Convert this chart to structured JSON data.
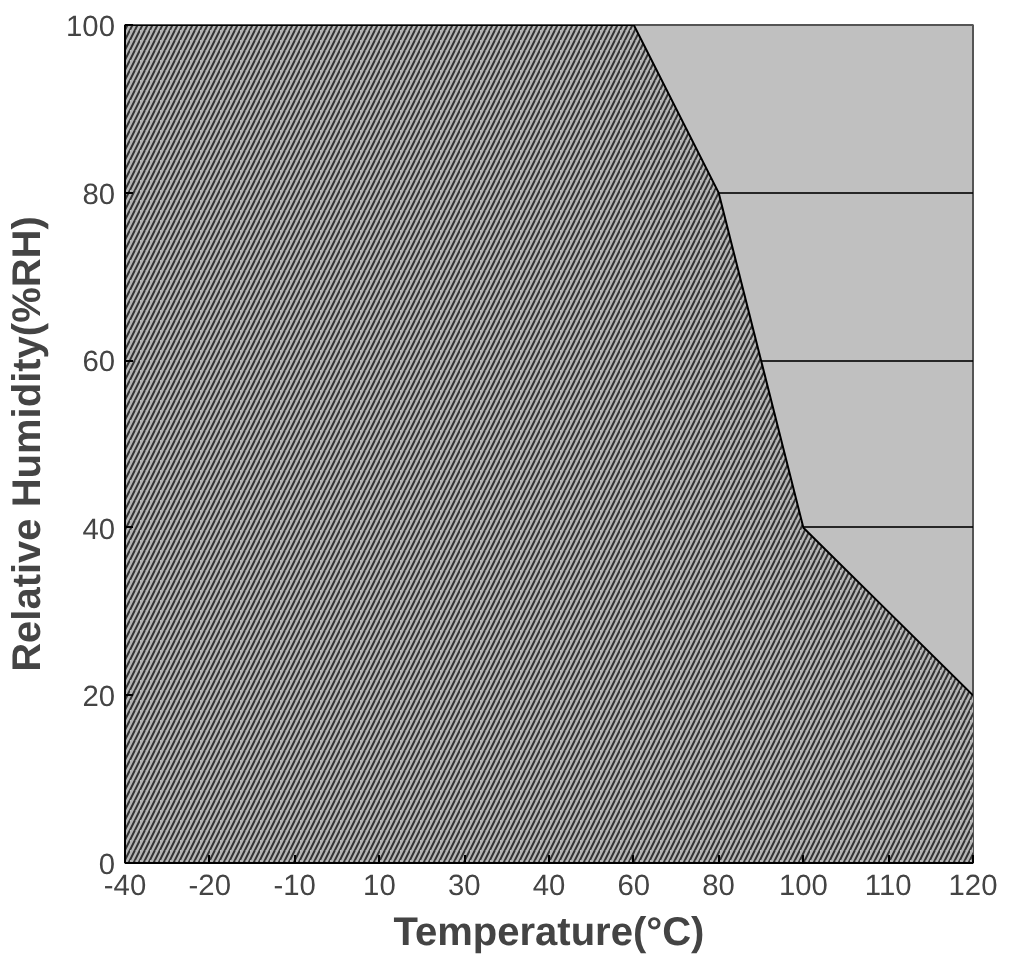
{
  "chart_data": {
    "type": "area",
    "categories": [
      "-40",
      "-20",
      "-10",
      "10",
      "30",
      "40",
      "60",
      "80",
      "100",
      "110",
      "120"
    ],
    "values": [
      100,
      100,
      100,
      100,
      100,
      100,
      100,
      80,
      40,
      30,
      20
    ],
    "color": "#b4b4b4",
    "xlabel": "Temperature(°C)",
    "ylabel": "Relative Humidity(%RH)",
    "ylim": [
      0,
      100
    ],
    "yticks": [
      0,
      20,
      40,
      60,
      80,
      100
    ],
    "grid": "y"
  }
}
